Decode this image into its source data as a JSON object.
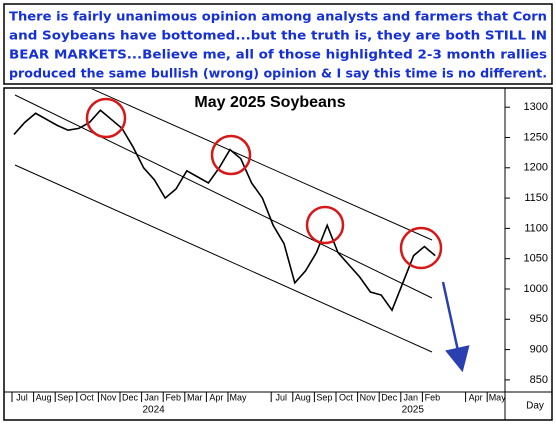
{
  "chart_data": {
    "type": "line",
    "annotation": [
      "There is fairly unanimous opinion among analysts and farmers that Corn",
      "and Soybeans have bottomed...but the truth is, they are both STILL IN",
      "BEAR MARKETS...Believe me, all of those highlighted 2-3 month rallies",
      "produced the same bullish (wrong) opinion & I say this time is no different."
    ],
    "title": "May 2025 Soybeans",
    "x_label": "Day",
    "year_labels": [
      "2024",
      "2025"
    ],
    "categories": [
      "Jul",
      null,
      "Aug",
      null,
      "Sep",
      null,
      "Oct",
      null,
      "Nov",
      null,
      "Dec",
      null,
      "Jan",
      null,
      "Feb",
      null,
      "Mar",
      null,
      "Apr",
      null,
      "May",
      null,
      null,
      null,
      "Jul",
      null,
      "Aug",
      null,
      "Sep",
      null,
      "Oct",
      null,
      "Nov",
      null,
      "Dec",
      null,
      "Jan",
      null,
      "Feb",
      null,
      null,
      null,
      "Apr",
      null,
      "May",
      null
    ],
    "values": [
      1255,
      1275,
      1290,
      1280,
      1270,
      1262,
      1265,
      1275,
      1295,
      1280,
      1265,
      1235,
      1200,
      1180,
      1150,
      1165,
      1195,
      1185,
      1175,
      1200,
      1230,
      1215,
      1175,
      1150,
      1105,
      1075,
      1010,
      1030,
      1060,
      1105,
      1060,
      1040,
      1020,
      995,
      990,
      965,
      1010,
      1055,
      1070,
      1055,
      null,
      null,
      null,
      null,
      null,
      null
    ],
    "color": "#000000",
    "ylim": [
      830,
      1330
    ],
    "yticks": [
      850,
      900,
      950,
      1000,
      1050,
      1100,
      1150,
      1200,
      1250,
      1300
    ],
    "y_axis_side": "right"
  }
}
